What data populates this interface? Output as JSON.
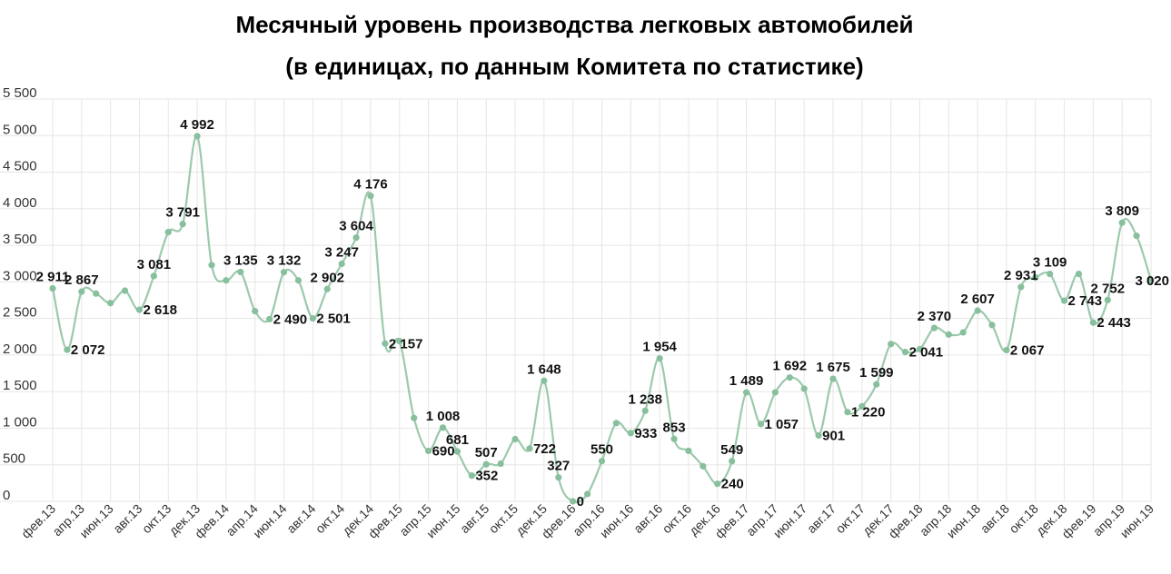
{
  "chart_data": {
    "type": "line",
    "title": "Месячный уровень производства  легковых автомобилей",
    "subtitle": "(в единицах, по данным Комитета по статистике)",
    "xlabel": "",
    "ylabel": "",
    "ylim": [
      0,
      5500
    ],
    "yticks": [
      0,
      500,
      1000,
      1500,
      2000,
      2500,
      3000,
      3500,
      4000,
      4500,
      5000,
      5500
    ],
    "ytick_labels": [
      "0",
      "500",
      "1 000",
      "1 500",
      "2 000",
      "2 500",
      "3 000",
      "3 500",
      "4 000",
      "4 500",
      "5 000",
      "5 500"
    ],
    "grid": true,
    "legend": "none",
    "line_color": "#9cc9ad",
    "marker_color": "#88bf9d",
    "x_tick_labels": [
      "фев.13",
      "апр.13",
      "июн.13",
      "авг.13",
      "окт.13",
      "дек.13",
      "фев.14",
      "апр.14",
      "июн.14",
      "авг.14",
      "окт.14",
      "дек.14",
      "фев.15",
      "апр.15",
      "июн.15",
      "авг.15",
      "окт.15",
      "дек.15",
      "фев.16",
      "апр.16",
      "июн.16",
      "авг.16",
      "окт.16",
      "дек.16",
      "фев.17",
      "апр.17",
      "июн.17",
      "авг.17",
      "окт.17",
      "дек.17",
      "фев.18",
      "апр.18",
      "июн.18",
      "авг.18",
      "окт.18",
      "дек.18",
      "фев.19",
      "апр.19",
      "июн.19"
    ],
    "x": [
      "фев.13",
      "мар.13",
      "апр.13",
      "май.13",
      "июн.13",
      "июл.13",
      "авг.13",
      "сен.13",
      "окт.13",
      "ноя.13",
      "дек.13",
      "янв.14",
      "фев.14",
      "мар.14",
      "апр.14",
      "май.14",
      "июн.14",
      "июл.14",
      "авг.14",
      "сен.14",
      "окт.14",
      "ноя.14",
      "дек.14",
      "янв.15",
      "фев.15",
      "мар.15",
      "апр.15",
      "май.15",
      "июн.15",
      "июл.15",
      "авг.15",
      "сен.15",
      "окт.15",
      "ноя.15",
      "дек.15",
      "янв.16",
      "фев.16",
      "мар.16",
      "апр.16",
      "май.16",
      "июн.16",
      "июл.16",
      "авг.16",
      "сен.16",
      "окт.16",
      "ноя.16",
      "дек.16",
      "янв.17",
      "фев.17",
      "мар.17",
      "апр.17",
      "май.17",
      "июн.17",
      "июл.17",
      "авг.17",
      "сен.17",
      "окт.17",
      "ноя.17",
      "дек.17",
      "янв.18",
      "фев.18",
      "мар.18",
      "апр.18",
      "май.18",
      "июн.18",
      "июл.18",
      "авг.18",
      "сен.18",
      "окт.18",
      "ноя.18",
      "дек.18",
      "янв.19",
      "фев.19",
      "мар.19",
      "апр.19",
      "май.19",
      "июн.19"
    ],
    "values": [
      2911,
      2072,
      2867,
      2840,
      2710,
      2880,
      2618,
      3081,
      3680,
      3791,
      4992,
      3230,
      3020,
      3135,
      2600,
      2490,
      3132,
      3020,
      2501,
      2902,
      3247,
      3604,
      4176,
      2157,
      2190,
      1140,
      690,
      1008,
      681,
      352,
      507,
      515,
      850,
      722,
      1648,
      327,
      0,
      100,
      550,
      1070,
      933,
      1238,
      1954,
      853,
      690,
      480,
      240,
      549,
      1489,
      1057,
      1490,
      1692,
      1540,
      901,
      1675,
      1220,
      1300,
      1599,
      2150,
      2041,
      2080,
      2370,
      2280,
      2310,
      2607,
      2410,
      2067,
      2931,
      3060,
      3109,
      2743,
      3109,
      2443,
      2752,
      3809,
      3630,
      3020
    ],
    "point_labels": [
      "2 911",
      "2 072",
      "2 867",
      "",
      "",
      "",
      "2 618",
      "3 081",
      "",
      "3 791",
      "4 992",
      "",
      "",
      "3 135",
      "",
      "2 490",
      "3 132",
      "",
      "2 501",
      "2 902",
      "3 247",
      "3 604",
      "4 176",
      "2 157",
      "",
      "",
      "690",
      "1 008",
      "681",
      "352",
      "507",
      "",
      "",
      "722",
      "1 648",
      "327",
      "0",
      "",
      "550",
      "",
      "933",
      "1 238",
      "1 954",
      "853",
      "",
      "",
      "240",
      "549",
      "1 489",
      "1 057",
      "",
      "1 692",
      "",
      "901",
      "1 675",
      "1 220",
      "",
      "1 599",
      "",
      "2 041",
      "",
      "2 370",
      "",
      "",
      "2 607",
      "",
      "2 067",
      "2 931",
      "",
      "3 109",
      "2 743",
      "",
      "2 443",
      "2 752",
      "3 809",
      "",
      "3 020"
    ]
  }
}
